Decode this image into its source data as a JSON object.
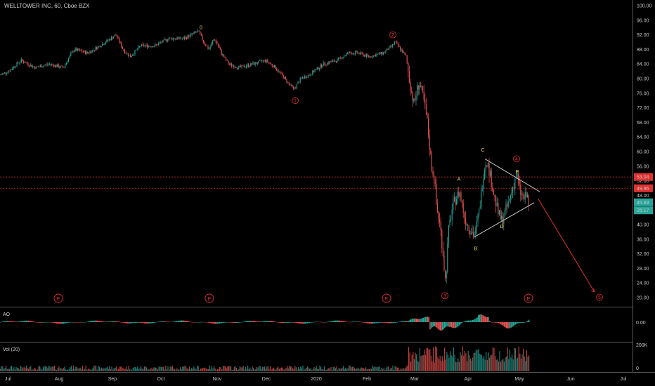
{
  "header": {
    "title": "WELLTOWER INC, 60, Cboe BZX"
  },
  "colors": {
    "background": "#000000",
    "up": "#26a69a",
    "down": "#ef5350",
    "wave_red": "#e03030",
    "wave_yellow": "#e8d44d",
    "trendline": "#c8c8c8",
    "price_tag_last": "#26a69a",
    "price_tag_red": "#c62828"
  },
  "chart_data": {
    "type": "line",
    "title": "WELLTOWER INC, 60, Cboe BZX",
    "ylim": [
      18,
      101
    ],
    "y_ticks": [
      "100.00",
      "96.00",
      "92.00",
      "88.00",
      "84.00",
      "80.00",
      "76.00",
      "72.00",
      "68.00",
      "64.00",
      "60.00",
      "56.00",
      "52.00",
      "48.00",
      "44.00",
      "40.00",
      "36.00",
      "32.00",
      "28.00",
      "24.00",
      "20.00"
    ],
    "x_ticks": [
      "Jul",
      "Aug",
      "Sep",
      "Oct",
      "Nov",
      "Dec",
      "2020",
      "Feb",
      "Mar",
      "Apr",
      "May",
      "Jun",
      "Jul"
    ],
    "price_path": [
      {
        "x": 0,
        "y": 81
      },
      {
        "x": 12,
        "y": 82
      },
      {
        "x": 30,
        "y": 85
      },
      {
        "x": 50,
        "y": 83
      },
      {
        "x": 70,
        "y": 84
      },
      {
        "x": 90,
        "y": 83
      },
      {
        "x": 105,
        "y": 88
      },
      {
        "x": 125,
        "y": 87
      },
      {
        "x": 150,
        "y": 90
      },
      {
        "x": 165,
        "y": 92
      },
      {
        "x": 175,
        "y": 88
      },
      {
        "x": 185,
        "y": 86
      },
      {
        "x": 200,
        "y": 89
      },
      {
        "x": 220,
        "y": 89
      },
      {
        "x": 240,
        "y": 91
      },
      {
        "x": 262,
        "y": 91
      },
      {
        "x": 282,
        "y": 93
      },
      {
        "x": 290,
        "y": 90
      },
      {
        "x": 297,
        "y": 88
      },
      {
        "x": 305,
        "y": 91
      },
      {
        "x": 315,
        "y": 87
      },
      {
        "x": 325,
        "y": 84
      },
      {
        "x": 340,
        "y": 83
      },
      {
        "x": 360,
        "y": 84
      },
      {
        "x": 378,
        "y": 85
      },
      {
        "x": 392,
        "y": 83
      },
      {
        "x": 405,
        "y": 80
      },
      {
        "x": 418,
        "y": 77
      },
      {
        "x": 428,
        "y": 80
      },
      {
        "x": 440,
        "y": 81
      },
      {
        "x": 460,
        "y": 84
      },
      {
        "x": 480,
        "y": 85
      },
      {
        "x": 495,
        "y": 87
      },
      {
        "x": 510,
        "y": 87
      },
      {
        "x": 525,
        "y": 86
      },
      {
        "x": 545,
        "y": 87
      },
      {
        "x": 558,
        "y": 89
      },
      {
        "x": 562,
        "y": 90
      },
      {
        "x": 570,
        "y": 88
      },
      {
        "x": 578,
        "y": 86
      },
      {
        "x": 583,
        "y": 79
      },
      {
        "x": 589,
        "y": 73
      },
      {
        "x": 596,
        "y": 79
      },
      {
        "x": 602,
        "y": 75
      },
      {
        "x": 608,
        "y": 68
      },
      {
        "x": 614,
        "y": 56
      },
      {
        "x": 618,
        "y": 53
      },
      {
        "x": 621,
        "y": 45
      },
      {
        "x": 626,
        "y": 40
      },
      {
        "x": 630,
        "y": 33
      },
      {
        "x": 634,
        "y": 24
      },
      {
        "x": 638,
        "y": 38
      },
      {
        "x": 643,
        "y": 44
      },
      {
        "x": 648,
        "y": 47
      },
      {
        "x": 654,
        "y": 49
      },
      {
        "x": 661,
        "y": 42
      },
      {
        "x": 668,
        "y": 39
      },
      {
        "x": 676,
        "y": 37
      },
      {
        "x": 682,
        "y": 44
      },
      {
        "x": 688,
        "y": 54
      },
      {
        "x": 692,
        "y": 58
      },
      {
        "x": 697,
        "y": 54
      },
      {
        "x": 703,
        "y": 48
      },
      {
        "x": 709,
        "y": 43
      },
      {
        "x": 714,
        "y": 41
      },
      {
        "x": 722,
        "y": 45
      },
      {
        "x": 728,
        "y": 49
      },
      {
        "x": 735,
        "y": 54
      },
      {
        "x": 740,
        "y": 49
      },
      {
        "x": 745,
        "y": 47
      },
      {
        "x": 750,
        "y": 48
      },
      {
        "x": 753,
        "y": 45
      }
    ],
    "annotations": {
      "wave_labels": [
        {
          "label": "0",
          "x": 286,
          "y": 94,
          "color": "yellow",
          "circled": false
        },
        {
          "label": "2",
          "x": 559,
          "y": 92,
          "color": "red",
          "circled": true
        },
        {
          "label": "1",
          "x": 420,
          "y": 74,
          "color": "red",
          "circled": true
        },
        {
          "label": "3",
          "x": 633,
          "y": 20.5,
          "color": "red",
          "circled": true
        },
        {
          "label": "4",
          "x": 735,
          "y": 58,
          "color": "red",
          "circled": true
        },
        {
          "label": "5",
          "x": 853,
          "y": 20.1,
          "color": "red",
          "circled": true
        },
        {
          "label": "A",
          "x": 653,
          "y": 52.5,
          "color": "yellow",
          "circled": false
        },
        {
          "label": "B",
          "x": 677,
          "y": 33.5,
          "color": "yellow",
          "circled": false
        },
        {
          "label": "C",
          "x": 687,
          "y": 60.5,
          "color": "yellow",
          "circled": false
        },
        {
          "label": "D",
          "x": 714,
          "y": 39.5,
          "color": "yellow",
          "circled": false
        },
        {
          "label": "E",
          "x": 736,
          "y": 54.5,
          "color": "yellow",
          "circled": false
        }
      ],
      "event_markers": [
        {
          "label": "E",
          "x": 83
        },
        {
          "label": "E",
          "x": 298
        },
        {
          "label": "E",
          "x": 550
        },
        {
          "label": "E",
          "x": 752
        }
      ],
      "triangle_upper": [
        {
          "x": 690,
          "y": 58
        },
        {
          "x": 768,
          "y": 49
        }
      ],
      "triangle_lower": [
        {
          "x": 674,
          "y": 36.5
        },
        {
          "x": 760,
          "y": 46
        }
      ],
      "projection_arrow": [
        {
          "x": 766,
          "y": 47
        },
        {
          "x": 846,
          "y": 21.5
        }
      ],
      "hlines": [
        {
          "y": 53.04,
          "color": "red",
          "style": "dashed"
        },
        {
          "y": 49.95,
          "color": "red",
          "style": "dashed"
        }
      ],
      "price_tags": [
        {
          "label": "53.04",
          "y": 53.04,
          "color": "red"
        },
        {
          "label": "49.95",
          "y": 49.95,
          "color": "red"
        },
        {
          "label": "45.83",
          "y": 46.1,
          "color": "teal"
        },
        {
          "label": "26:17",
          "y": 43.9,
          "color": "teal"
        }
      ]
    },
    "indicators": {
      "ao": {
        "title": "AO",
        "axis_label": "0.00"
      },
      "volume": {
        "title": "Vol (20)",
        "axis_labels": [
          "200K",
          "0"
        ]
      }
    }
  }
}
